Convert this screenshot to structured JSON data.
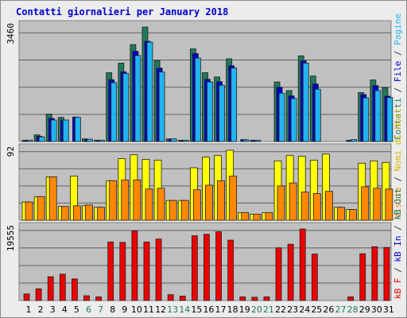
{
  "title": "Contatti giornalieri per January 2018",
  "chart_data": {
    "type": "bar",
    "categories": [
      "1",
      "2",
      "3",
      "4",
      "5",
      "6",
      "7",
      "8",
      "9",
      "10",
      "11",
      "12",
      "13",
      "14",
      "15",
      "16",
      "17",
      "18",
      "19",
      "20",
      "21",
      "22",
      "23",
      "24",
      "25",
      "26",
      "27",
      "28",
      "29",
      "30",
      "31"
    ],
    "weekend_days": [
      "6",
      "7",
      "13",
      "14",
      "20",
      "21",
      "27",
      "28"
    ],
    "panels": [
      {
        "name": "top",
        "ymax_label": "3460",
        "ymax": 3460,
        "series": [
          {
            "key": "visits",
            "color": "#1f7a5a",
            "values": [
              40,
              200,
              830,
              730,
              0,
              80,
              40,
              2080,
              2370,
              2930,
              3460,
              2450,
              80,
              40,
              2800,
              2080,
              1950,
              2500,
              0,
              40,
              0,
              1800,
              1540,
              2590,
              1980,
              0,
              0,
              40,
              1480,
              1860,
              1630
            ]
          },
          {
            "key": "pages",
            "color": "#0000cc",
            "values": [
              30,
              160,
              700,
              650,
              740,
              60,
              30,
              1870,
              2110,
              2730,
              3030,
              2220,
              60,
              30,
              2660,
              1880,
              1810,
              2290,
              60,
              30,
              0,
              1640,
              1380,
              2440,
              1740,
              0,
              0,
              30,
              1420,
              1690,
              1370
            ]
          },
          {
            "key": "files",
            "color": "#21b5f0",
            "values": [
              40,
              140,
              650,
              650,
              730,
              70,
              40,
              1780,
              2060,
              2600,
              3000,
              2100,
              80,
              40,
              2520,
              1800,
              1700,
              2220,
              50,
              30,
              0,
              1460,
              1300,
              2370,
              1580,
              0,
              0,
              60,
              1320,
              1540,
              1330
            ]
          }
        ],
        "right_labels": [
          {
            "text": "Contatti",
            "color": "#1f7a5a"
          },
          {
            "text": " / ",
            "color": "#333333"
          },
          {
            "text": "File",
            "color": "#0000cc"
          },
          {
            "text": " / ",
            "color": "#333333"
          },
          {
            "text": "Pagine",
            "color": "#21b5f0"
          }
        ]
      },
      {
        "name": "middle",
        "ymax_label": "92",
        "ymax": 92,
        "series": [
          {
            "key": "hosts",
            "color": "#ffff00",
            "values": [
              24,
              31,
              57,
              18,
              58,
              19,
              17,
              52,
              81,
              86,
              80,
              79,
              26,
              26,
              69,
              83,
              85,
              92,
              10,
              8,
              10,
              78,
              85,
              84,
              79,
              87,
              17,
              14,
              75,
              78,
              76
            ]
          },
          {
            "key": "visits",
            "color": "#ff8800",
            "values": [
              24,
              31,
              57,
              18,
              19,
              20,
              17,
              52,
              53,
              53,
              41,
              42,
              26,
              26,
              40,
              46,
              52,
              58,
              10,
              8,
              10,
              45,
              49,
              37,
              35,
              38,
              17,
              14,
              44,
              42,
              41
            ]
          }
        ],
        "right_labels": [
          {
            "text": "Visite",
            "color": "#ff8800"
          },
          {
            "text": " / ",
            "color": "#333333"
          },
          {
            "text": "Nomi di Host",
            "color": "#d6b800"
          }
        ]
      },
      {
        "name": "bottom",
        "ymax_label": "19555",
        "ymax": 19555,
        "series": [
          {
            "key": "kbin",
            "color": "#ee0000",
            "values": [
              1800,
              3200,
              6500,
              7200,
              5900,
              1300,
              1000,
              16000,
              15900,
              19000,
              16000,
              16800,
              1600,
              1200,
              17700,
              18100,
              18800,
              16500,
              1000,
              900,
              1000,
              14400,
              15400,
              19555,
              12700,
              0,
              0,
              1000,
              12800,
              14700,
              14500
            ]
          }
        ],
        "right_labels": [
          {
            "text": "kB F",
            "color": "#ee0000"
          },
          {
            "text": " / ",
            "color": "#333333"
          },
          {
            "text": "kB In",
            "color": "#0000cc"
          },
          {
            "text": " / ",
            "color": "#333333"
          },
          {
            "text": "kB Out",
            "color": "#1f7a5a"
          }
        ]
      }
    ]
  },
  "colors": {
    "weekday_label": "#0000cc",
    "weekend_label": "#1f7a5a",
    "plot_bg": "#c0c0c0",
    "grid": "#606060"
  }
}
